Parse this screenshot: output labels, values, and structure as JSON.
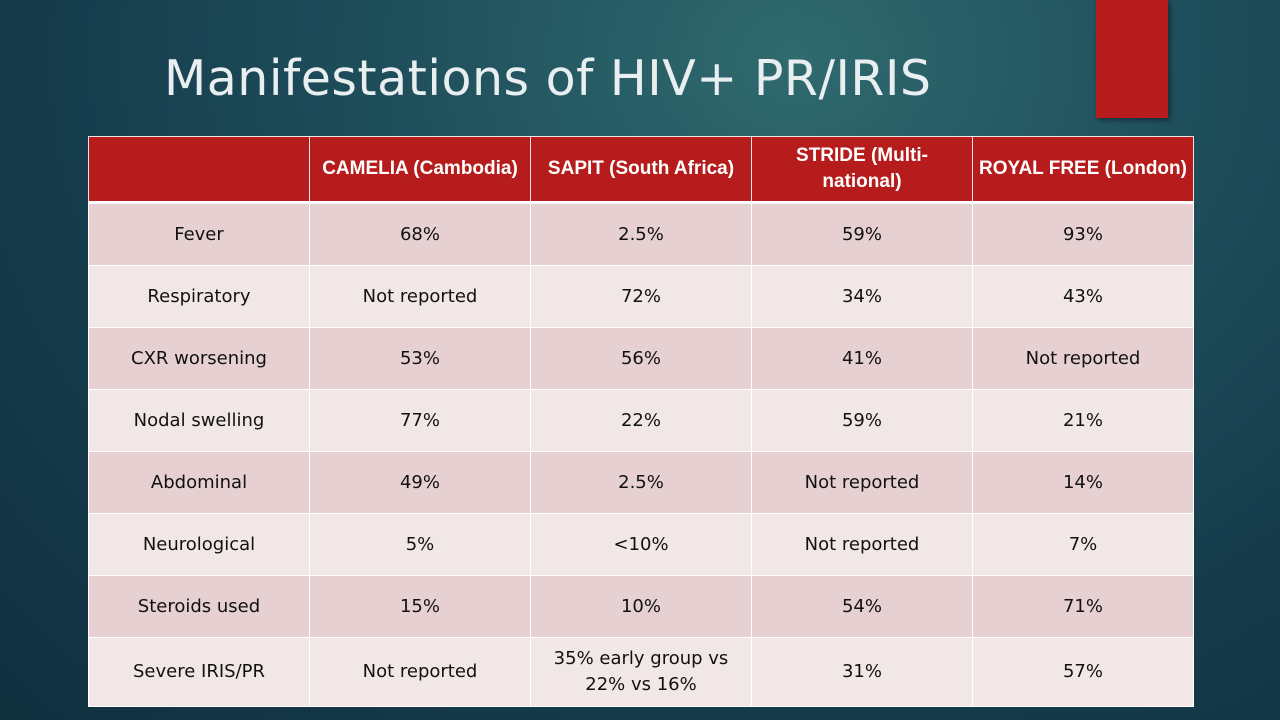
{
  "slide": {
    "title": "Manifestations of HIV+ PR/IRIS",
    "accent_color": "#b71c1c",
    "background_color": "#1a4553"
  },
  "table": {
    "headers": [
      "",
      "CAMELIA (Cambodia)",
      "SAPIT (South Africa)",
      "STRIDE (Multi-national)",
      "ROYAL FREE (London)"
    ],
    "rows": [
      [
        "Fever",
        "68%",
        "2.5%",
        "59%",
        "93%"
      ],
      [
        "Respiratory",
        "Not reported",
        "72%",
        "34%",
        "43%"
      ],
      [
        "CXR worsening",
        "53%",
        "56%",
        "41%",
        "Not reported"
      ],
      [
        "Nodal swelling",
        "77%",
        "22%",
        "59%",
        "21%"
      ],
      [
        "Abdominal",
        "49%",
        "2.5%",
        "Not reported",
        "14%"
      ],
      [
        "Neurological",
        "5%",
        "<10%",
        "Not reported",
        "7%"
      ],
      [
        "Steroids used",
        "15%",
        "10%",
        "54%",
        "71%"
      ],
      [
        "Severe IRIS/PR",
        "Not reported",
        "35% early group vs 22% vs 16%",
        "31%",
        "57%"
      ]
    ]
  }
}
